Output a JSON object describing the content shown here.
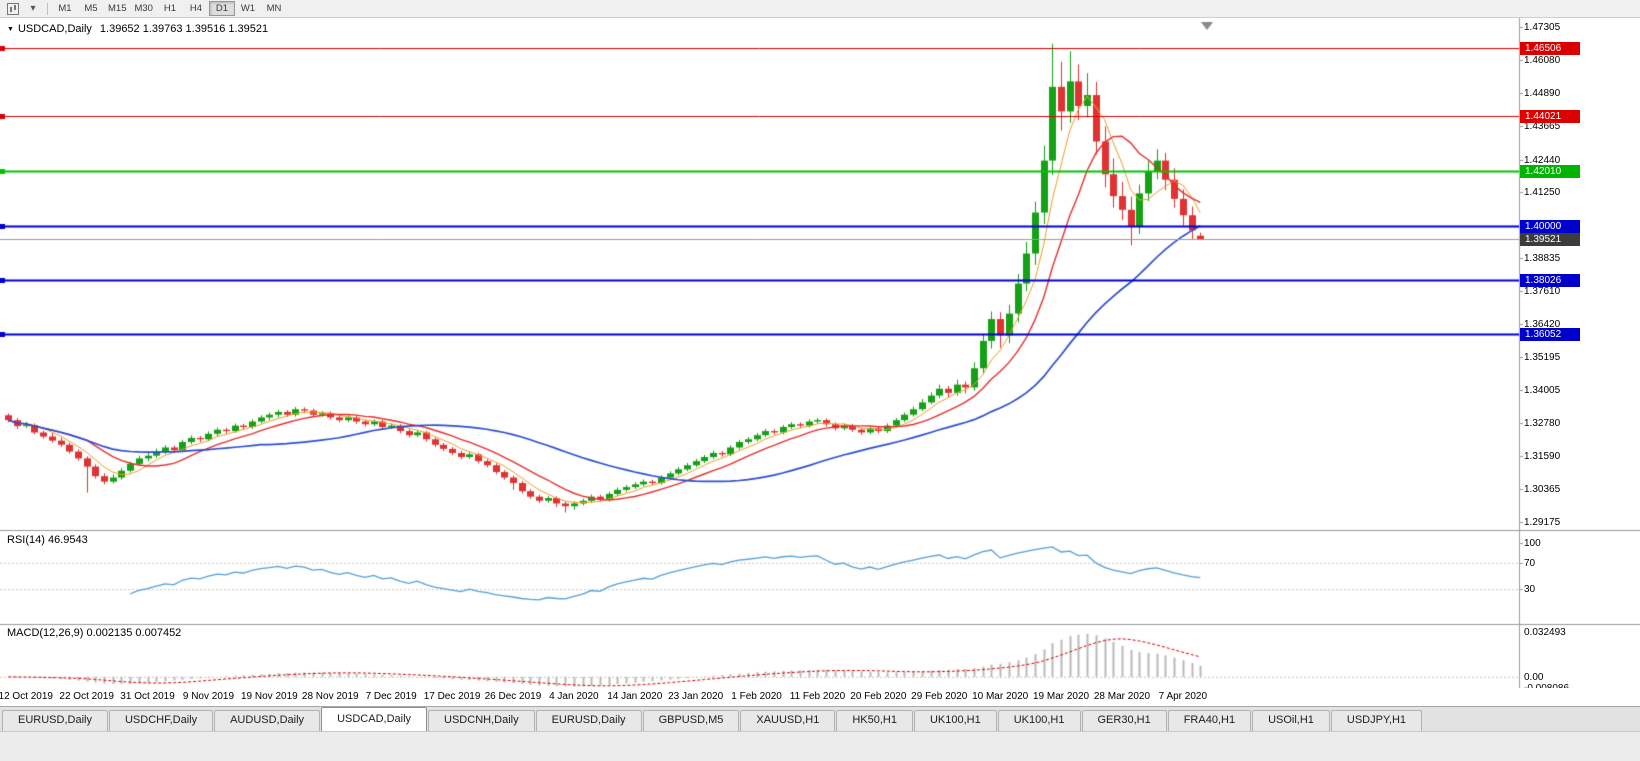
{
  "toolbar": {
    "icons": [
      {
        "name": "chart-type-icon"
      },
      {
        "name": "dropdown-arrow-icon",
        "glyph": "▾"
      }
    ],
    "timeframes": [
      {
        "label": "M1",
        "active": false
      },
      {
        "label": "M5",
        "active": false
      },
      {
        "label": "M15",
        "active": false
      },
      {
        "label": "M30",
        "active": false
      },
      {
        "label": "H1",
        "active": false
      },
      {
        "label": "H4",
        "active": false
      },
      {
        "label": "D1",
        "active": true
      },
      {
        "label": "W1",
        "active": false
      },
      {
        "label": "MN",
        "active": false
      }
    ]
  },
  "chart": {
    "title_symbol": "USDCAD,Daily",
    "title_ohlc": "1.39652 1.39763 1.39516 1.39521",
    "rsi_label": "RSI(14)",
    "rsi_value": "46.9543",
    "macd_label": "MACD(12,26,9)",
    "macd_values": "0.002135 0.007452",
    "dropdown_glyph": "▼"
  },
  "chart_data": [
    {
      "type": "candlestick",
      "title": "USDCAD,Daily",
      "ohlc_display": {
        "open": "1.39652",
        "high": "1.39763",
        "low": "1.39516",
        "close": "1.39521"
      },
      "ylim": [
        1.2888,
        1.4762
      ],
      "y_ticks": [
        1.47305,
        1.4608,
        1.4489,
        1.43665,
        1.4244,
        1.4125,
        1.38835,
        1.3761,
        1.3642,
        1.35195,
        1.34005,
        1.3278,
        1.3159,
        1.30365,
        1.29175
      ],
      "x_labels": [
        "12 Oct 2019",
        "22 Oct 2019",
        "31 Oct 2019",
        "9 Nov 2019",
        "19 Nov 2019",
        "28 Nov 2019",
        "7 Dec 2019",
        "17 Dec 2019",
        "26 Dec 2019",
        "4 Jan 2020",
        "14 Jan 2020",
        "23 Jan 2020",
        "1 Feb 2020",
        "11 Feb 2020",
        "20 Feb 2020",
        "29 Feb 2020",
        "10 Mar 2020",
        "19 Mar 2020",
        "28 Mar 2020",
        "7 Apr 2020"
      ],
      "x_label_first_candle": 2,
      "x_label_step": 7,
      "bull_color": "#15a015",
      "bear_color": "#e03232",
      "moving_averages": [
        {
          "name": "MA fast",
          "period": 5,
          "color": "#ef9f28",
          "width": 1
        },
        {
          "name": "MA medium",
          "period": 10,
          "color": "#e53030",
          "width": 1.4
        },
        {
          "name": "MA slow",
          "period": 30,
          "color": "#2c4ed0",
          "width": 1.7
        }
      ],
      "horizontal_lines": [
        {
          "value": 1.46506,
          "color": "#dd0000",
          "width": 1,
          "badge": "#dd0000"
        },
        {
          "value": 1.44021,
          "color": "#dd0000",
          "width": 1,
          "badge": "#dd0000"
        },
        {
          "value": 1.4201,
          "color": "#00c400",
          "width": 2,
          "badge": "#00b400"
        },
        {
          "value": 1.4,
          "color": "#0000cc",
          "width": 2,
          "badge": "#0000cc"
        },
        {
          "value": 1.38026,
          "color": "#0000cc",
          "width": 2,
          "badge": "#0000cc"
        },
        {
          "value": 1.36052,
          "color": "#0000cc",
          "width": 2,
          "badge": "#0000cc"
        }
      ],
      "current_price": {
        "value": 1.39521,
        "line_color": "#9a9a9a",
        "badge": "#3c3c3c"
      },
      "candles": [
        [
          1.3308,
          1.3315,
          1.3282,
          1.329
        ],
        [
          1.329,
          1.3298,
          1.3258,
          1.3268
        ],
        [
          1.3268,
          1.3284,
          1.3262,
          1.3272
        ],
        [
          1.3272,
          1.3278,
          1.3238,
          1.3245
        ],
        [
          1.3245,
          1.3252,
          1.3222,
          1.323
        ],
        [
          1.323,
          1.3242,
          1.3208,
          1.3215
        ],
        [
          1.3215,
          1.3226,
          1.3192,
          1.32
        ],
        [
          1.32,
          1.3208,
          1.3168,
          1.3175
        ],
        [
          1.3175,
          1.3183,
          1.3142,
          1.315
        ],
        [
          1.315,
          1.3158,
          1.3025,
          1.312
        ],
        [
          1.312,
          1.3128,
          1.3076,
          1.3085
        ],
        [
          1.3085,
          1.3096,
          1.3055,
          1.3065
        ],
        [
          1.3065,
          1.3092,
          1.3058,
          1.308
        ],
        [
          1.308,
          1.3114,
          1.3072,
          1.3105
        ],
        [
          1.3105,
          1.3138,
          1.3098,
          1.313
        ],
        [
          1.313,
          1.316,
          1.3122,
          1.315
        ],
        [
          1.315,
          1.3172,
          1.314,
          1.316
        ],
        [
          1.316,
          1.3186,
          1.3152,
          1.3175
        ],
        [
          1.3175,
          1.3198,
          1.3166,
          1.319
        ],
        [
          1.319,
          1.3197,
          1.317,
          1.318
        ],
        [
          1.318,
          1.3218,
          1.3173,
          1.321
        ],
        [
          1.321,
          1.3234,
          1.3202,
          1.3225
        ],
        [
          1.3225,
          1.3232,
          1.321,
          1.322
        ],
        [
          1.322,
          1.3249,
          1.3213,
          1.324
        ],
        [
          1.324,
          1.3263,
          1.3232,
          1.3255
        ],
        [
          1.3255,
          1.3262,
          1.324,
          1.325
        ],
        [
          1.325,
          1.3278,
          1.3243,
          1.327
        ],
        [
          1.327,
          1.3277,
          1.3254,
          1.3265
        ],
        [
          1.3265,
          1.3293,
          1.3258,
          1.3285
        ],
        [
          1.3285,
          1.3308,
          1.3278,
          1.33
        ],
        [
          1.33,
          1.3318,
          1.329,
          1.331
        ],
        [
          1.331,
          1.3328,
          1.33,
          1.332
        ],
        [
          1.332,
          1.3327,
          1.3302,
          1.331
        ],
        [
          1.331,
          1.3338,
          1.3303,
          1.333
        ],
        [
          1.333,
          1.3337,
          1.3316,
          1.3325
        ],
        [
          1.3325,
          1.3332,
          1.3301,
          1.331
        ],
        [
          1.331,
          1.3323,
          1.3302,
          1.3315
        ],
        [
          1.3315,
          1.3322,
          1.3292,
          1.33
        ],
        [
          1.33,
          1.3307,
          1.3282,
          1.329
        ],
        [
          1.329,
          1.3308,
          1.3283,
          1.33
        ],
        [
          1.33,
          1.3307,
          1.3277,
          1.3285
        ],
        [
          1.3285,
          1.3292,
          1.3267,
          1.3275
        ],
        [
          1.3275,
          1.3293,
          1.3268,
          1.3285
        ],
        [
          1.3285,
          1.3291,
          1.3257,
          1.3265
        ],
        [
          1.3265,
          1.3278,
          1.3258,
          1.327
        ],
        [
          1.327,
          1.3276,
          1.3242,
          1.325
        ],
        [
          1.325,
          1.3257,
          1.3227,
          1.3235
        ],
        [
          1.3235,
          1.3253,
          1.3228,
          1.3245
        ],
        [
          1.3245,
          1.3251,
          1.3212,
          1.322
        ],
        [
          1.322,
          1.3227,
          1.3192,
          1.32
        ],
        [
          1.32,
          1.3207,
          1.3177,
          1.3185
        ],
        [
          1.3185,
          1.3192,
          1.3162,
          1.317
        ],
        [
          1.317,
          1.3177,
          1.3147,
          1.3155
        ],
        [
          1.3155,
          1.3173,
          1.3148,
          1.3165
        ],
        [
          1.3165,
          1.3171,
          1.3132,
          1.314
        ],
        [
          1.314,
          1.3147,
          1.3117,
          1.3125
        ],
        [
          1.3125,
          1.3132,
          1.3092,
          1.31
        ],
        [
          1.31,
          1.3107,
          1.3072,
          1.308
        ],
        [
          1.308,
          1.3087,
          1.3035,
          1.306
        ],
        [
          1.306,
          1.3067,
          1.3022,
          1.303
        ],
        [
          1.303,
          1.3037,
          1.3002,
          1.301
        ],
        [
          1.301,
          1.3017,
          1.2987,
          1.2995
        ],
        [
          1.2995,
          1.3013,
          1.2988,
          1.3005
        ],
        [
          1.3005,
          1.3011,
          1.2972,
          1.2985
        ],
        [
          1.2985,
          1.2992,
          1.2952,
          1.2975
        ],
        [
          1.2975,
          1.2993,
          1.2962,
          1.2985
        ],
        [
          1.2985,
          1.3003,
          1.2978,
          1.2995
        ],
        [
          1.2995,
          1.3018,
          1.2988,
          1.301
        ],
        [
          1.301,
          1.3017,
          1.2992,
          1.3
        ],
        [
          1.3,
          1.3028,
          1.2993,
          1.302
        ],
        [
          1.302,
          1.3043,
          1.3013,
          1.3035
        ],
        [
          1.3035,
          1.3053,
          1.3028,
          1.3045
        ],
        [
          1.3045,
          1.3063,
          1.3038,
          1.3055
        ],
        [
          1.3055,
          1.3073,
          1.3048,
          1.3065
        ],
        [
          1.3065,
          1.3072,
          1.3052,
          1.306
        ],
        [
          1.306,
          1.3088,
          1.3053,
          1.308
        ],
        [
          1.308,
          1.3103,
          1.3073,
          1.3095
        ],
        [
          1.3095,
          1.3118,
          1.3088,
          1.311
        ],
        [
          1.311,
          1.3133,
          1.3103,
          1.3125
        ],
        [
          1.3125,
          1.3148,
          1.3118,
          1.314
        ],
        [
          1.314,
          1.3163,
          1.3133,
          1.3155
        ],
        [
          1.3155,
          1.3178,
          1.3148,
          1.317
        ],
        [
          1.317,
          1.3177,
          1.3157,
          1.3165
        ],
        [
          1.3165,
          1.3198,
          1.3158,
          1.319
        ],
        [
          1.319,
          1.3218,
          1.3183,
          1.321
        ],
        [
          1.321,
          1.3228,
          1.3203,
          1.322
        ],
        [
          1.322,
          1.3243,
          1.3213,
          1.3235
        ],
        [
          1.3235,
          1.3258,
          1.3228,
          1.325
        ],
        [
          1.325,
          1.3257,
          1.3237,
          1.3245
        ],
        [
          1.3245,
          1.3273,
          1.3238,
          1.3265
        ],
        [
          1.3265,
          1.3283,
          1.3258,
          1.3275
        ],
        [
          1.3275,
          1.3282,
          1.3262,
          1.327
        ],
        [
          1.327,
          1.3293,
          1.3263,
          1.3285
        ],
        [
          1.3285,
          1.3298,
          1.3278,
          1.329
        ],
        [
          1.329,
          1.3297,
          1.3267,
          1.3275
        ],
        [
          1.3275,
          1.3282,
          1.3252,
          1.326
        ],
        [
          1.326,
          1.3278,
          1.3253,
          1.327
        ],
        [
          1.327,
          1.3277,
          1.3247,
          1.3255
        ],
        [
          1.3255,
          1.3262,
          1.3237,
          1.3245
        ],
        [
          1.3245,
          1.3268,
          1.3238,
          1.326
        ],
        [
          1.326,
          1.3267,
          1.3242,
          1.325
        ],
        [
          1.325,
          1.3278,
          1.3243,
          1.327
        ],
        [
          1.327,
          1.3298,
          1.3263,
          1.329
        ],
        [
          1.329,
          1.3318,
          1.3283,
          1.331
        ],
        [
          1.331,
          1.334,
          1.3303,
          1.333
        ],
        [
          1.333,
          1.3367,
          1.3323,
          1.3355
        ],
        [
          1.3355,
          1.3392,
          1.3348,
          1.338
        ],
        [
          1.338,
          1.342,
          1.337,
          1.3405
        ],
        [
          1.3405,
          1.3415,
          1.3372,
          1.339
        ],
        [
          1.339,
          1.3438,
          1.338,
          1.342
        ],
        [
          1.342,
          1.3432,
          1.3388,
          1.341
        ],
        [
          1.341,
          1.3502,
          1.3398,
          1.348
        ],
        [
          1.348,
          1.3605,
          1.3462,
          1.358
        ],
        [
          1.358,
          1.3688,
          1.3552,
          1.366
        ],
        [
          1.366,
          1.3685,
          1.3555,
          1.36
        ],
        [
          1.36,
          1.3712,
          1.3572,
          1.368
        ],
        [
          1.368,
          1.3825,
          1.3648,
          1.379
        ],
        [
          1.379,
          1.3942,
          1.3762,
          1.39
        ],
        [
          1.39,
          1.409,
          1.3858,
          1.405
        ],
        [
          1.405,
          1.4295,
          1.4008,
          1.424
        ],
        [
          1.424,
          1.4668,
          1.4188,
          1.451
        ],
        [
          1.451,
          1.4602,
          1.435,
          1.442
        ],
        [
          1.442,
          1.464,
          1.4378,
          1.453
        ],
        [
          1.453,
          1.4592,
          1.4388,
          1.444
        ],
        [
          1.444,
          1.456,
          1.4398,
          1.448
        ],
        [
          1.448,
          1.4528,
          1.4262,
          1.431
        ],
        [
          1.431,
          1.4365,
          1.4142,
          1.419
        ],
        [
          1.419,
          1.4248,
          1.4068,
          1.411
        ],
        [
          1.411,
          1.4162,
          1.4022,
          1.406
        ],
        [
          1.406,
          1.4108,
          1.393,
          1.4
        ],
        [
          1.4,
          1.4152,
          1.3972,
          1.412
        ],
        [
          1.412,
          1.4238,
          1.4092,
          1.42
        ],
        [
          1.42,
          1.4282,
          1.4172,
          1.424
        ],
        [
          1.424,
          1.4268,
          1.4132,
          1.417
        ],
        [
          1.417,
          1.4212,
          1.4068,
          1.41
        ],
        [
          1.41,
          1.4135,
          1.4002,
          1.404
        ],
        [
          1.404,
          1.4072,
          1.3952,
          1.3985
        ],
        [
          1.39652,
          1.39763,
          1.39516,
          1.39521
        ]
      ]
    },
    {
      "type": "line",
      "name": "RSI(14)",
      "period": 14,
      "value": "46.9543",
      "color": "#559fd6",
      "levels": [
        70,
        30
      ],
      "y_ticks": [
        100,
        70,
        30
      ],
      "ylim": [
        0,
        100
      ],
      "source": "close"
    },
    {
      "type": "macd",
      "name": "MACD(12,26,9)",
      "fast": 12,
      "slow": 26,
      "signal": 9,
      "values": "0.002135 0.007452",
      "histogram_color": "#b8b8b8",
      "signal_color": "#dd0000",
      "y_ticks": [
        "0.032493",
        "0.00",
        "-0.008086"
      ],
      "ylim": [
        -0.008086,
        0.032493
      ]
    }
  ],
  "tabs": [
    {
      "label": "EURUSD,Daily",
      "active": false
    },
    {
      "label": "USDCHF,Daily",
      "active": false
    },
    {
      "label": "AUDUSD,Daily",
      "active": false
    },
    {
      "label": "USDCAD,Daily",
      "active": true
    },
    {
      "label": "USDCNH,Daily",
      "active": false
    },
    {
      "label": "EURUSD,Daily",
      "active": false
    },
    {
      "label": "GBPUSD,M5",
      "active": false
    },
    {
      "label": "XAUUSD,H1",
      "active": false
    },
    {
      "label": "HK50,H1",
      "active": false
    },
    {
      "label": "UK100,H1",
      "active": false
    },
    {
      "label": "UK100,H1",
      "active": false
    },
    {
      "label": "GER30,H1",
      "active": false
    },
    {
      "label": "FRA40,H1",
      "active": false
    },
    {
      "label": "USOil,H1",
      "active": false
    },
    {
      "label": "USDJPY,H1",
      "active": false
    }
  ]
}
